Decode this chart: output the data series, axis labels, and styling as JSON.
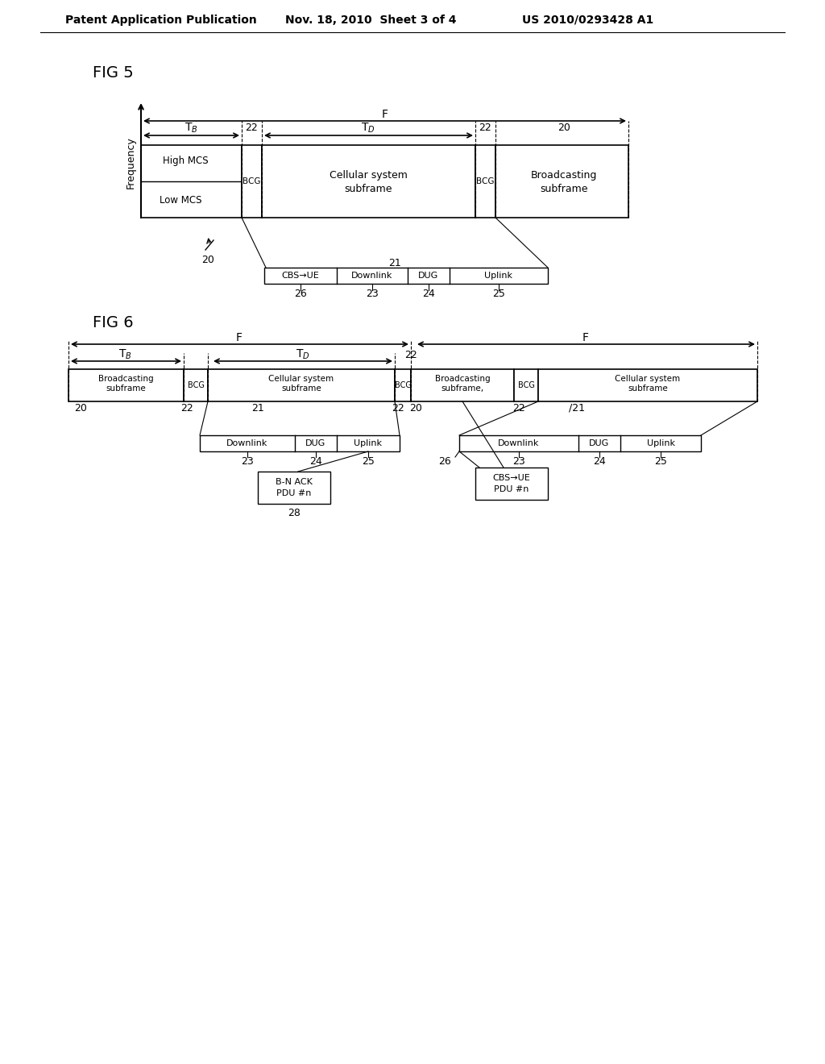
{
  "bg_color": "#ffffff",
  "header_text1": "Patent Application Publication",
  "header_text2": "Nov. 18, 2010  Sheet 3 of 4",
  "header_text3": "US 2010/0293428 A1",
  "fig5_label": "FIG 5",
  "fig6_label": "FIG 6"
}
